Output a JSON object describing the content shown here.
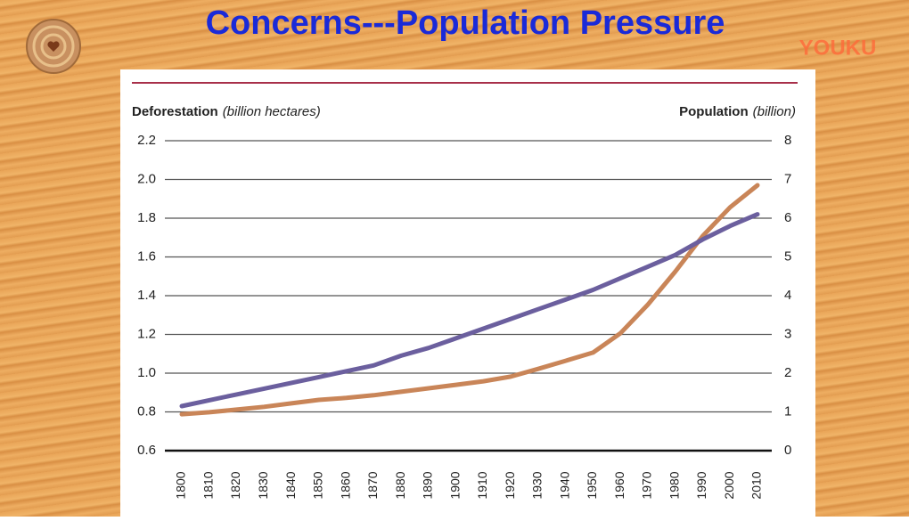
{
  "slide": {
    "title": "Concerns---Population Pressure",
    "logo": "YOUKU"
  },
  "chart_data": {
    "type": "line",
    "ylabel": "Deforestation",
    "ylabel_unit": "(billion hectares)",
    "y2label": "Population",
    "y2label_unit": "(billion)",
    "x": [
      1800,
      1810,
      1820,
      1830,
      1840,
      1850,
      1860,
      1870,
      1880,
      1890,
      1900,
      1910,
      1920,
      1930,
      1940,
      1950,
      1960,
      1970,
      1980,
      1990,
      2000,
      2010
    ],
    "xlim": [
      1800,
      2010
    ],
    "ylim": [
      0.6,
      2.2
    ],
    "yticks": [
      0.6,
      {
        "value": 0.8,
        "label": "0.8"
      },
      {
        "value": 1.0,
        "label": "1.0"
      },
      1.2,
      1.4,
      1.6,
      1.8,
      {
        "value": 2.0,
        "label": "2.0"
      },
      2.2
    ],
    "y2lim": [
      0,
      8
    ],
    "y2ticks": [
      0,
      1,
      2,
      3,
      4,
      5,
      6,
      7,
      8
    ],
    "grid": true,
    "series": [
      {
        "name": "Deforestation",
        "color": "#6b5f9e",
        "values": [
          0.83,
          0.86,
          0.89,
          0.92,
          0.95,
          0.98,
          1.01,
          1.04,
          1.09,
          1.13,
          1.18,
          1.23,
          1.28,
          1.33,
          1.38,
          1.43,
          1.49,
          1.55,
          1.61,
          1.69,
          1.76,
          1.82
        ]
      },
      {
        "name": "Population",
        "color": "#c98558",
        "axis": "y2",
        "values": [
          0.94,
          0.99,
          1.06,
          1.13,
          1.22,
          1.31,
          1.36,
          1.43,
          1.52,
          1.61,
          1.7,
          1.79,
          1.91,
          2.11,
          2.32,
          2.53,
          3.03,
          3.77,
          4.62,
          5.54,
          6.28,
          6.85
        ]
      }
    ]
  }
}
